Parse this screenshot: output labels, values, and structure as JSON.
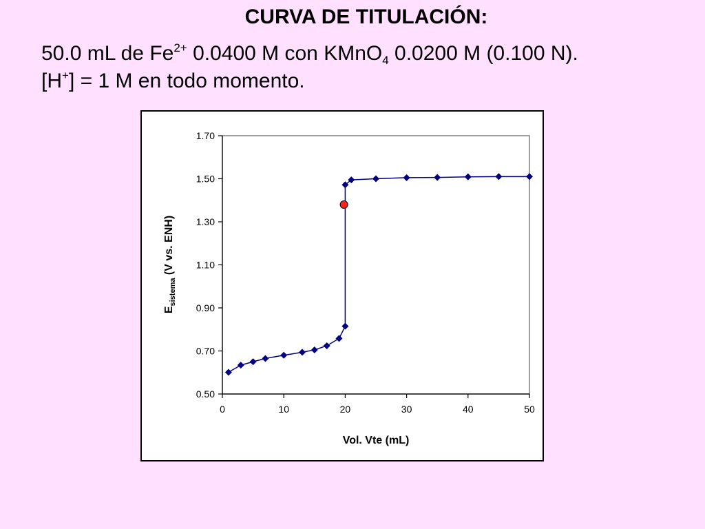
{
  "header": {
    "title": "CURVA DE TITULACIÓN:",
    "line1_part1": "50.0 mL de Fe",
    "line1_sup": "2+",
    "line1_part2": " 0.0400 M con KMnO",
    "line1_sub": "4",
    "line1_part3": " 0.0200 M (0.100 N).",
    "line2_part1": "[H",
    "line2_sup": "+",
    "line2_part2": "] = 1 M en todo momento."
  },
  "chart_data": {
    "type": "scatter",
    "xlabel": "Vol. Vte (mL)",
    "ylabel_main": "E",
    "ylabel_sub": "sistema",
    "ylabel_rest": " (V vs. ENH)",
    "xlim": [
      0,
      50
    ],
    "ylim": [
      0.5,
      1.7
    ],
    "x_ticks": [
      0,
      10,
      20,
      30,
      40,
      50
    ],
    "x_tick_labels": [
      "0",
      "10",
      "20",
      "30",
      "40",
      "50"
    ],
    "y_ticks": [
      0.5,
      0.7,
      0.9,
      1.1,
      1.3,
      1.5,
      1.7
    ],
    "y_tick_labels": [
      "0.50",
      "0.70",
      "0.90",
      "1.10",
      "1.30",
      "1.50",
      "1.70"
    ],
    "grid": false,
    "series": [
      {
        "color": "#000080",
        "x": [
          1,
          3,
          5,
          7,
          10,
          13,
          15,
          17,
          19,
          20,
          20,
          21,
          25,
          30,
          35,
          40,
          45,
          50
        ],
        "y": [
          0.601,
          0.634,
          0.65,
          0.665,
          0.68,
          0.694,
          0.705,
          0.724,
          0.758,
          0.815,
          1.472,
          1.495,
          1.5,
          1.505,
          1.506,
          1.509,
          1.51,
          1.51
        ]
      }
    ],
    "highlight_point": {
      "x": 19.8,
      "y": 1.38,
      "color": "#ff2020"
    }
  }
}
